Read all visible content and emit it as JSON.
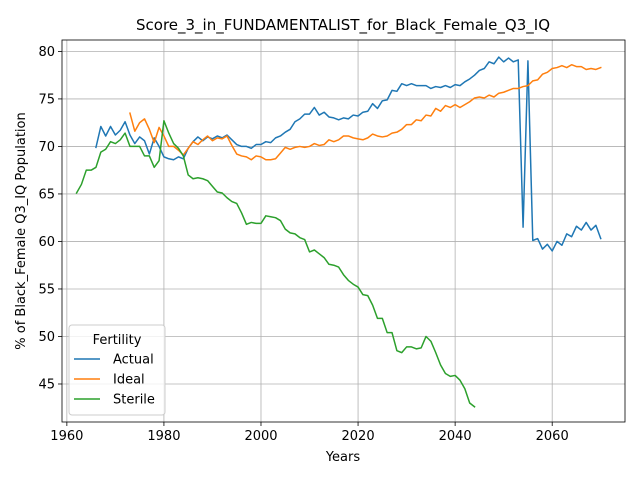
{
  "chart_data": {
    "type": "line",
    "title": "Score_3_in_FUNDAMENTALIST_for_Black_Female_Q3_IQ",
    "xlabel": "Years",
    "ylabel": "% of Black_Female Q3_IQ Population",
    "xlim": [
      1959,
      2075
    ],
    "ylim": [
      41,
      81.2
    ],
    "xticks": [
      1960,
      1980,
      2000,
      2020,
      2040,
      2060
    ],
    "yticks": [
      45,
      50,
      55,
      60,
      65,
      70,
      75,
      80
    ],
    "grid": true,
    "legend": {
      "title": "Fertility",
      "position": "lower-left"
    },
    "series": [
      {
        "name": "Actual",
        "color": "#1f77b4",
        "points": [
          [
            1966,
            69.9
          ],
          [
            1967,
            72.1
          ],
          [
            1968,
            71.1
          ],
          [
            1969,
            72.1
          ],
          [
            1970,
            71.2
          ],
          [
            1971,
            71.7
          ],
          [
            1972,
            72.6
          ],
          [
            1973,
            71.2
          ],
          [
            1974,
            70.3
          ],
          [
            1975,
            71.0
          ],
          [
            1976,
            70.6
          ],
          [
            1977,
            69.2
          ],
          [
            1978,
            70.9
          ],
          [
            1979,
            70.0
          ],
          [
            1980,
            68.9
          ],
          [
            1981,
            68.7
          ],
          [
            1982,
            68.6
          ],
          [
            1983,
            68.9
          ],
          [
            1984,
            68.7
          ],
          [
            1985,
            69.8
          ],
          [
            1986,
            70.5
          ],
          [
            1987,
            71.0
          ],
          [
            1988,
            70.6
          ],
          [
            1989,
            71.0
          ],
          [
            1990,
            70.8
          ],
          [
            1991,
            71.1
          ],
          [
            1992,
            70.9
          ],
          [
            1993,
            71.2
          ],
          [
            1994,
            70.7
          ],
          [
            1995,
            70.2
          ],
          [
            1996,
            70.0
          ],
          [
            1997,
            70.0
          ],
          [
            1998,
            69.8
          ],
          [
            1999,
            70.2
          ],
          [
            2000,
            70.2
          ],
          [
            2001,
            70.5
          ],
          [
            2002,
            70.4
          ],
          [
            2003,
            70.9
          ],
          [
            2004,
            71.1
          ],
          [
            2005,
            71.5
          ],
          [
            2006,
            71.8
          ],
          [
            2007,
            72.6
          ],
          [
            2008,
            72.9
          ],
          [
            2009,
            73.4
          ],
          [
            2010,
            73.4
          ],
          [
            2011,
            74.1
          ],
          [
            2012,
            73.3
          ],
          [
            2013,
            73.6
          ],
          [
            2014,
            73.1
          ],
          [
            2015,
            73.0
          ],
          [
            2016,
            72.8
          ],
          [
            2017,
            73.0
          ],
          [
            2018,
            72.9
          ],
          [
            2019,
            73.3
          ],
          [
            2020,
            73.2
          ],
          [
            2021,
            73.6
          ],
          [
            2022,
            73.7
          ],
          [
            2023,
            74.5
          ],
          [
            2024,
            74.0
          ],
          [
            2025,
            74.8
          ],
          [
            2026,
            74.9
          ],
          [
            2027,
            75.9
          ],
          [
            2028,
            75.8
          ],
          [
            2029,
            76.6
          ],
          [
            2030,
            76.4
          ],
          [
            2031,
            76.6
          ],
          [
            2032,
            76.4
          ],
          [
            2033,
            76.4
          ],
          [
            2034,
            76.4
          ],
          [
            2035,
            76.1
          ],
          [
            2036,
            76.3
          ],
          [
            2037,
            76.2
          ],
          [
            2038,
            76.4
          ],
          [
            2039,
            76.2
          ],
          [
            2040,
            76.5
          ],
          [
            2041,
            76.4
          ],
          [
            2042,
            76.8
          ],
          [
            2043,
            77.1
          ],
          [
            2044,
            77.5
          ],
          [
            2045,
            78.0
          ],
          [
            2046,
            78.2
          ],
          [
            2047,
            78.9
          ],
          [
            2048,
            78.7
          ],
          [
            2049,
            79.4
          ],
          [
            2050,
            78.9
          ],
          [
            2051,
            79.3
          ],
          [
            2052,
            78.9
          ],
          [
            2053,
            79.1
          ],
          [
            2054,
            61.5
          ],
          [
            2055,
            79.0
          ],
          [
            2056,
            60.1
          ],
          [
            2057,
            60.3
          ],
          [
            2058,
            59.2
          ],
          [
            2059,
            59.7
          ],
          [
            2060,
            59.0
          ],
          [
            2061,
            60.0
          ],
          [
            2062,
            59.6
          ],
          [
            2063,
            60.8
          ],
          [
            2064,
            60.5
          ],
          [
            2065,
            61.6
          ],
          [
            2066,
            61.2
          ],
          [
            2067,
            62.0
          ],
          [
            2068,
            61.2
          ],
          [
            2069,
            61.7
          ],
          [
            2070,
            60.3
          ]
        ]
      },
      {
        "name": "Ideal",
        "color": "#ff7f0e",
        "points": [
          [
            1973,
            73.5
          ],
          [
            1974,
            71.6
          ],
          [
            1975,
            72.5
          ],
          [
            1976,
            72.9
          ],
          [
            1977,
            71.8
          ],
          [
            1978,
            70.4
          ],
          [
            1979,
            72.0
          ],
          [
            1980,
            71.1
          ],
          [
            1981,
            70.0
          ],
          [
            1982,
            70.0
          ],
          [
            1983,
            69.6
          ],
          [
            1984,
            69.1
          ],
          [
            1985,
            69.8
          ],
          [
            1986,
            70.5
          ],
          [
            1987,
            70.2
          ],
          [
            1988,
            70.7
          ],
          [
            1989,
            71.1
          ],
          [
            1990,
            70.6
          ],
          [
            1991,
            70.9
          ],
          [
            1992,
            70.8
          ],
          [
            1993,
            71.1
          ],
          [
            1994,
            70.1
          ],
          [
            1995,
            69.2
          ],
          [
            1996,
            69.0
          ],
          [
            1997,
            68.9
          ],
          [
            1998,
            68.6
          ],
          [
            1999,
            69.0
          ],
          [
            2000,
            68.9
          ],
          [
            2001,
            68.6
          ],
          [
            2002,
            68.6
          ],
          [
            2003,
            68.7
          ],
          [
            2004,
            69.3
          ],
          [
            2005,
            69.9
          ],
          [
            2006,
            69.7
          ],
          [
            2007,
            69.9
          ],
          [
            2008,
            70.0
          ],
          [
            2009,
            69.9
          ],
          [
            2010,
            70.0
          ],
          [
            2011,
            70.3
          ],
          [
            2012,
            70.1
          ],
          [
            2013,
            70.2
          ],
          [
            2014,
            70.7
          ],
          [
            2015,
            70.5
          ],
          [
            2016,
            70.7
          ],
          [
            2017,
            71.1
          ],
          [
            2018,
            71.1
          ],
          [
            2019,
            70.9
          ],
          [
            2020,
            70.8
          ],
          [
            2021,
            70.7
          ],
          [
            2022,
            70.9
          ],
          [
            2023,
            71.3
          ],
          [
            2024,
            71.1
          ],
          [
            2025,
            71.0
          ],
          [
            2026,
            71.1
          ],
          [
            2027,
            71.4
          ],
          [
            2028,
            71.5
          ],
          [
            2029,
            71.8
          ],
          [
            2030,
            72.3
          ],
          [
            2031,
            72.3
          ],
          [
            2032,
            72.8
          ],
          [
            2033,
            72.7
          ],
          [
            2034,
            73.3
          ],
          [
            2035,
            73.2
          ],
          [
            2036,
            74.0
          ],
          [
            2037,
            73.7
          ],
          [
            2038,
            74.3
          ],
          [
            2039,
            74.1
          ],
          [
            2040,
            74.4
          ],
          [
            2041,
            74.1
          ],
          [
            2042,
            74.4
          ],
          [
            2043,
            74.7
          ],
          [
            2044,
            75.1
          ],
          [
            2045,
            75.2
          ],
          [
            2046,
            75.1
          ],
          [
            2047,
            75.4
          ],
          [
            2048,
            75.2
          ],
          [
            2049,
            75.6
          ],
          [
            2050,
            75.7
          ],
          [
            2051,
            75.9
          ],
          [
            2052,
            76.1
          ],
          [
            2053,
            76.1
          ],
          [
            2054,
            76.3
          ],
          [
            2055,
            76.4
          ],
          [
            2056,
            76.9
          ],
          [
            2057,
            77.0
          ],
          [
            2058,
            77.6
          ],
          [
            2059,
            77.8
          ],
          [
            2060,
            78.2
          ],
          [
            2061,
            78.3
          ],
          [
            2062,
            78.5
          ],
          [
            2063,
            78.3
          ],
          [
            2064,
            78.6
          ],
          [
            2065,
            78.4
          ],
          [
            2066,
            78.4
          ],
          [
            2067,
            78.1
          ],
          [
            2068,
            78.2
          ],
          [
            2069,
            78.1
          ],
          [
            2070,
            78.3
          ]
        ]
      },
      {
        "name": "Sterile",
        "color": "#2ca02c",
        "points": [
          [
            1962,
            65.1
          ],
          [
            1963,
            66.0
          ],
          [
            1964,
            67.5
          ],
          [
            1965,
            67.5
          ],
          [
            1966,
            67.8
          ],
          [
            1967,
            69.4
          ],
          [
            1968,
            69.7
          ],
          [
            1969,
            70.5
          ],
          [
            1970,
            70.3
          ],
          [
            1971,
            70.7
          ],
          [
            1972,
            71.4
          ],
          [
            1973,
            70.0
          ],
          [
            1974,
            70.0
          ],
          [
            1975,
            70.0
          ],
          [
            1976,
            69.0
          ],
          [
            1977,
            69.0
          ],
          [
            1978,
            67.8
          ],
          [
            1979,
            68.5
          ],
          [
            1980,
            72.7
          ],
          [
            1981,
            71.4
          ],
          [
            1982,
            70.3
          ],
          [
            1983,
            69.8
          ],
          [
            1984,
            69.0
          ],
          [
            1985,
            67.0
          ],
          [
            1986,
            66.6
          ],
          [
            1987,
            66.7
          ],
          [
            1988,
            66.6
          ],
          [
            1989,
            66.4
          ],
          [
            1990,
            65.8
          ],
          [
            1991,
            65.2
          ],
          [
            1992,
            65.1
          ],
          [
            1993,
            64.6
          ],
          [
            1994,
            64.2
          ],
          [
            1995,
            64.0
          ],
          [
            1996,
            63.0
          ],
          [
            1997,
            61.8
          ],
          [
            1998,
            62.0
          ],
          [
            1999,
            61.9
          ],
          [
            2000,
            61.9
          ],
          [
            2001,
            62.7
          ],
          [
            2002,
            62.6
          ],
          [
            2003,
            62.5
          ],
          [
            2004,
            62.2
          ],
          [
            2005,
            61.3
          ],
          [
            2006,
            60.9
          ],
          [
            2007,
            60.8
          ],
          [
            2008,
            60.4
          ],
          [
            2009,
            60.2
          ],
          [
            2010,
            58.9
          ],
          [
            2011,
            59.1
          ],
          [
            2012,
            58.7
          ],
          [
            2013,
            58.3
          ],
          [
            2014,
            57.6
          ],
          [
            2015,
            57.5
          ],
          [
            2016,
            57.3
          ],
          [
            2017,
            56.5
          ],
          [
            2018,
            55.9
          ],
          [
            2019,
            55.5
          ],
          [
            2020,
            55.2
          ],
          [
            2021,
            54.4
          ],
          [
            2022,
            54.3
          ],
          [
            2023,
            53.3
          ],
          [
            2024,
            51.9
          ],
          [
            2025,
            51.9
          ],
          [
            2026,
            50.4
          ],
          [
            2027,
            50.4
          ],
          [
            2028,
            48.5
          ],
          [
            2029,
            48.3
          ],
          [
            2030,
            48.9
          ],
          [
            2031,
            48.9
          ],
          [
            2032,
            48.7
          ],
          [
            2033,
            48.8
          ],
          [
            2034,
            50.0
          ],
          [
            2035,
            49.5
          ],
          [
            2036,
            48.3
          ],
          [
            2037,
            47.0
          ],
          [
            2038,
            46.1
          ],
          [
            2039,
            45.8
          ],
          [
            2040,
            45.9
          ],
          [
            2041,
            45.4
          ],
          [
            2042,
            44.5
          ],
          [
            2043,
            43.0
          ],
          [
            2044,
            42.6
          ]
        ]
      }
    ]
  }
}
